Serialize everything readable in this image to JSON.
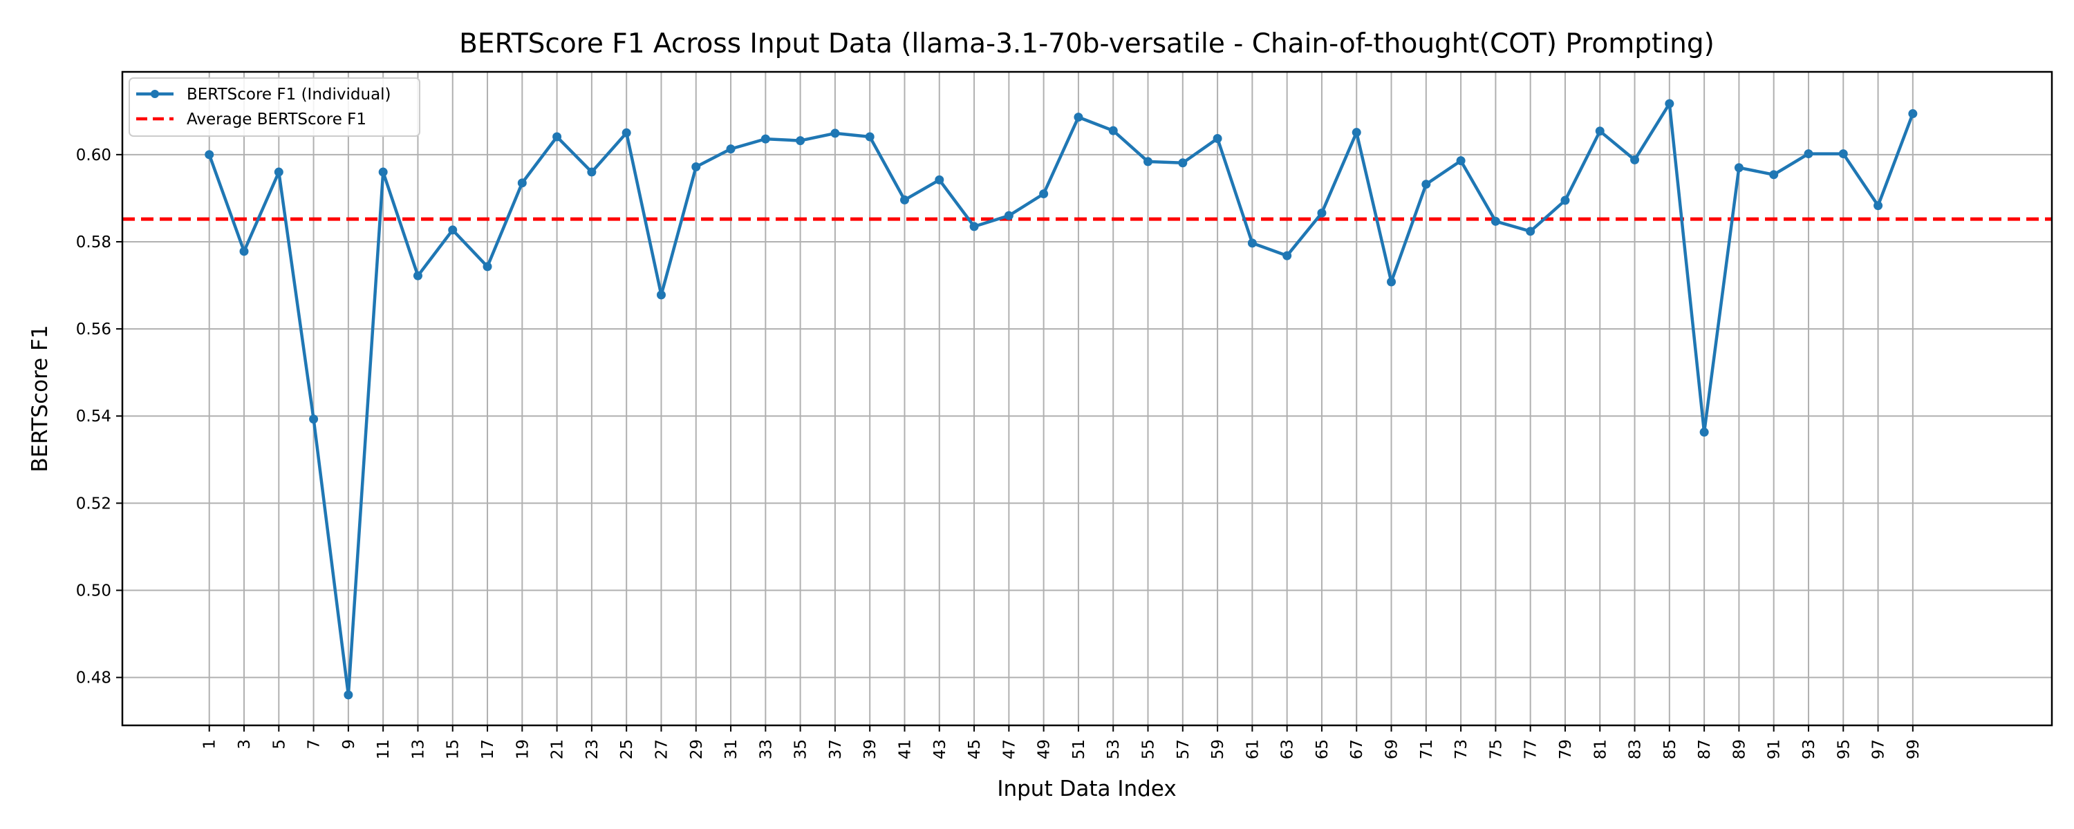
{
  "chart_data": {
    "type": "line",
    "title": "BERTScore F1 Across Input Data (llama-3.1-70b-versatile - Chain-of-thought(COT) Prompting)",
    "xlabel": "Input Data Index",
    "ylabel": "BERTScore F1",
    "xlim": [
      -4,
      107
    ],
    "ylim": [
      0.469,
      0.619
    ],
    "xticks": [
      1,
      3,
      5,
      7,
      9,
      11,
      13,
      15,
      17,
      19,
      21,
      23,
      25,
      27,
      29,
      31,
      33,
      35,
      37,
      39,
      41,
      43,
      45,
      47,
      49,
      51,
      53,
      55,
      57,
      59,
      61,
      63,
      65,
      67,
      69,
      71,
      73,
      75,
      77,
      79,
      81,
      83,
      85,
      87,
      89,
      91,
      93,
      95,
      97,
      99
    ],
    "xtick_labels": [
      "1",
      "3",
      "5",
      "7",
      "9",
      "11",
      "13",
      "15",
      "17",
      "19",
      "21",
      "23",
      "25",
      "27",
      "29",
      "31",
      "33",
      "35",
      "37",
      "39",
      "41",
      "43",
      "45",
      "47",
      "49",
      "51",
      "53",
      "55",
      "57",
      "59",
      "61",
      "63",
      "65",
      "67",
      "69",
      "71",
      "73",
      "75",
      "77",
      "79",
      "81",
      "83",
      "85",
      "87",
      "89",
      "91",
      "93",
      "95",
      "97",
      "99"
    ],
    "yticks": [
      0.48,
      0.5,
      0.52,
      0.54,
      0.56,
      0.58,
      0.6
    ],
    "ytick_labels": [
      "0.48",
      "0.50",
      "0.52",
      "0.54",
      "0.56",
      "0.58",
      "0.60"
    ],
    "grid": true,
    "legend_position": "top-left",
    "series": [
      {
        "name": "BERTScore F1 (Individual)",
        "style": "solid-line-with-markers",
        "color": "#1f77b4",
        "x": [
          1,
          3,
          5,
          7,
          9,
          11,
          13,
          15,
          17,
          19,
          21,
          23,
          25,
          27,
          29,
          31,
          33,
          35,
          37,
          39,
          41,
          43,
          45,
          47,
          49,
          51,
          53,
          55,
          57,
          59,
          61,
          63,
          65,
          67,
          69,
          71,
          73,
          75,
          77,
          79,
          81,
          83,
          85,
          87,
          89,
          91,
          93,
          95,
          97,
          99
        ],
        "y": [
          0.6,
          0.5778,
          0.596,
          0.5393,
          0.476,
          0.596,
          0.5722,
          0.5827,
          0.5743,
          0.5935,
          0.6041,
          0.596,
          0.605,
          0.5678,
          0.5972,
          0.6013,
          0.6036,
          0.6032,
          0.6049,
          0.6041,
          0.5896,
          0.5942,
          0.5835,
          0.586,
          0.591,
          0.6086,
          0.6055,
          0.5984,
          0.5981,
          0.6037,
          0.5797,
          0.5768,
          0.5866,
          0.6051,
          0.5708,
          0.5932,
          0.5986,
          0.5847,
          0.5824,
          0.5895,
          0.6054,
          0.5988,
          0.6117,
          0.5363,
          0.597,
          0.5954,
          0.6002,
          0.6002,
          0.5883,
          0.6094
        ]
      },
      {
        "name": "Average BERTScore F1",
        "style": "dashed-line",
        "color": "#ff0000",
        "y_constant": 0.5852
      }
    ]
  }
}
